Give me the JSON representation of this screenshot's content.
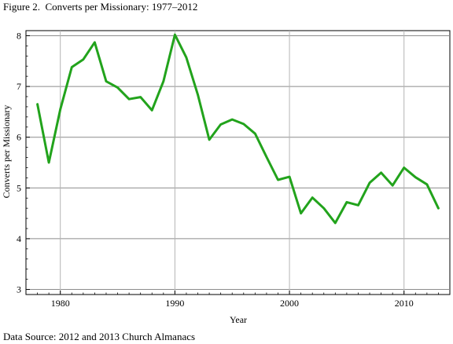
{
  "figure": {
    "title": "Figure 2.  Converts per Missionary: 1977–2012",
    "source": "Data Source: 2012 and 2013 Church Almanacs"
  },
  "chart_data": {
    "type": "line",
    "xlabel": "Year",
    "ylabel": "Converts per Missionary",
    "xlim": [
      1977,
      2014
    ],
    "ylim": [
      2.9,
      8.1
    ],
    "xticks": [
      1980,
      1990,
      2000,
      2010
    ],
    "yticks": [
      3,
      4,
      5,
      6,
      7,
      8
    ],
    "grid": true,
    "line_color": "#22a31c",
    "x": [
      1978,
      1979,
      1980,
      1981,
      1982,
      1983,
      1984,
      1985,
      1986,
      1987,
      1988,
      1989,
      1990,
      1991,
      1992,
      1993,
      1994,
      1995,
      1996,
      1997,
      1998,
      1999,
      2000,
      2001,
      2002,
      2003,
      2004,
      2005,
      2006,
      2007,
      2008,
      2009,
      2010,
      2011,
      2012,
      2013
    ],
    "values": [
      6.65,
      5.5,
      6.55,
      7.38,
      7.53,
      7.87,
      7.1,
      6.98,
      6.75,
      6.79,
      6.53,
      7.1,
      8.02,
      7.57,
      6.84,
      5.95,
      6.25,
      6.35,
      6.26,
      6.07,
      5.61,
      5.16,
      5.22,
      4.5,
      4.81,
      4.6,
      4.31,
      4.72,
      4.66,
      5.1,
      5.3,
      5.05,
      5.4,
      5.21,
      5.07,
      4.6
    ]
  }
}
